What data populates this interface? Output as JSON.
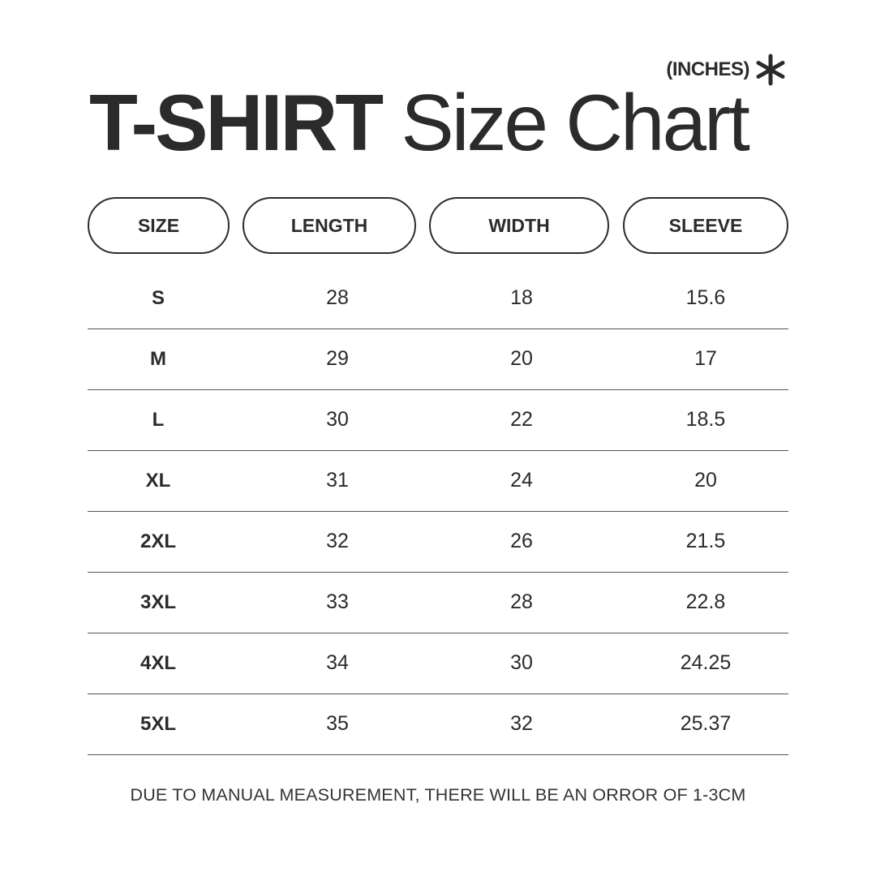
{
  "header": {
    "units": "(INCHES)",
    "units_icon": "asterisk-icon",
    "title_bold": "T-SHIRT",
    "title_light": "Size Chart"
  },
  "table": {
    "columns": [
      "SIZE",
      "LENGTH",
      "WIDTH",
      "SLEEVE"
    ],
    "rows": [
      [
        "S",
        "28",
        "18",
        "15.6"
      ],
      [
        "M",
        "29",
        "20",
        "17"
      ],
      [
        "L",
        "30",
        "22",
        "18.5"
      ],
      [
        "XL",
        "31",
        "24",
        "20"
      ],
      [
        "2XL",
        "32",
        "26",
        "21.5"
      ],
      [
        "3XL",
        "33",
        "28",
        "22.8"
      ],
      [
        "4XL",
        "34",
        "30",
        "24.25"
      ],
      [
        "5XL",
        "35",
        "32",
        "25.37"
      ]
    ]
  },
  "footer": {
    "note": "DUE TO MANUAL MEASUREMENT, THERE WILL BE AN ORROR OF 1-3CM"
  }
}
